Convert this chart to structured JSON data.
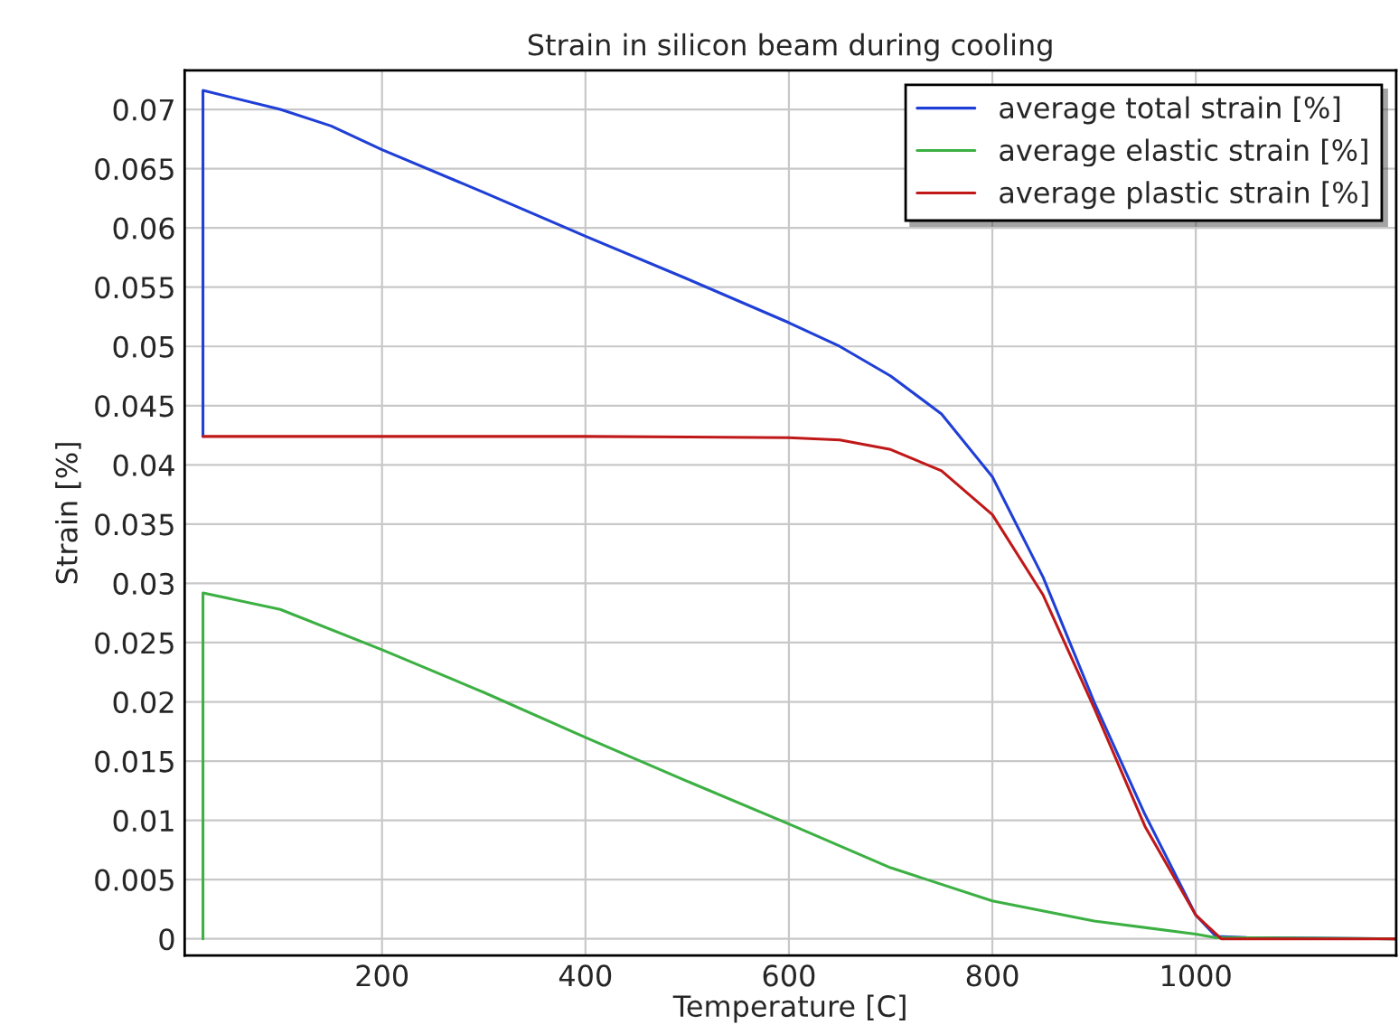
{
  "chart_data": {
    "type": "line",
    "title": "Strain in silicon beam during cooling",
    "xlabel": "Temperature [C]",
    "ylabel": "Strain [%]",
    "xlim": [
      6,
      1197
    ],
    "ylim": [
      -0.0014,
      0.0733
    ],
    "xticks": [
      200,
      400,
      600,
      800,
      1000
    ],
    "yticks": [
      0,
      0.005,
      0.01,
      0.015,
      0.02,
      0.025,
      0.03,
      0.035,
      0.04,
      0.045,
      0.05,
      0.055,
      0.06,
      0.065,
      0.07
    ],
    "grid": true,
    "legend": "top right",
    "marker": "none",
    "line_style": "solid",
    "series": [
      {
        "name": "average total strain [%]",
        "color": "#1f3fd6",
        "x": [
          24,
          24,
          100,
          150,
          200,
          300,
          400,
          500,
          600,
          650,
          700,
          750,
          800,
          850,
          900,
          950,
          1000,
          1020,
          1050,
          1197
        ],
        "values": [
          0.0424,
          0.0716,
          0.07,
          0.0686,
          0.0666,
          0.063,
          0.0593,
          0.0557,
          0.052,
          0.05,
          0.0475,
          0.0443,
          0.039,
          0.0305,
          0.02,
          0.0105,
          0.002,
          0.0002,
          0.0001,
          0
        ]
      },
      {
        "name": "average elastic strain [%]",
        "color": "#3cb043",
        "x": [
          24,
          24,
          100,
          200,
          300,
          400,
          500,
          600,
          700,
          800,
          900,
          1000,
          1020,
          1197
        ],
        "values": [
          0,
          0.0292,
          0.0278,
          0.0244,
          0.0208,
          0.017,
          0.0133,
          0.0097,
          0.006,
          0.0032,
          0.0015,
          0.0004,
          0.0001,
          0
        ]
      },
      {
        "name": "average plastic strain [%]",
        "color": "#c01818",
        "x": [
          24,
          200,
          400,
          600,
          650,
          700,
          750,
          800,
          850,
          900,
          950,
          1000,
          1025,
          1197
        ],
        "values": [
          0.0424,
          0.0424,
          0.0424,
          0.0423,
          0.0421,
          0.0413,
          0.0395,
          0.0358,
          0.029,
          0.0195,
          0.0095,
          0.002,
          0,
          0
        ]
      }
    ]
  }
}
